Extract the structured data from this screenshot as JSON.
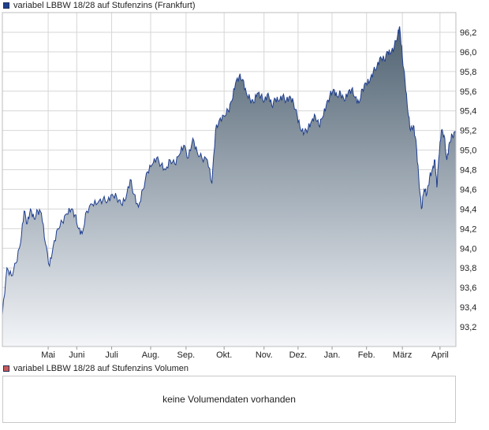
{
  "price_legend": {
    "label": "variabel LBBW 18/28 auf Stufenzins (Frankfurt)",
    "color": "#1f3f8f"
  },
  "volume_legend": {
    "label": "variabel LBBW 18/28 auf Stufenzins Volumen",
    "color": "#c85a5a"
  },
  "volume_panel": {
    "message": "keine Volumendaten vorhanden"
  },
  "chart_data": {
    "type": "area",
    "xlabel": "",
    "ylabel": "",
    "ylim": [
      93.0,
      96.4
    ],
    "grid": true,
    "y_ticks": [
      "93,2",
      "93,4",
      "93,6",
      "93,8",
      "94,0",
      "94,2",
      "94,4",
      "94,6",
      "94,8",
      "95,0",
      "95,2",
      "95,4",
      "95,6",
      "95,8",
      "96,0",
      "96,2"
    ],
    "x_ticks": [
      {
        "label": "Mai",
        "t": 0.101
      },
      {
        "label": "Juni",
        "t": 0.164
      },
      {
        "label": "Juli",
        "t": 0.241
      },
      {
        "label": "Aug.",
        "t": 0.327
      },
      {
        "label": "Sep.",
        "t": 0.405
      },
      {
        "label": "Okt.",
        "t": 0.489
      },
      {
        "label": "Nov.",
        "t": 0.577
      },
      {
        "label": "Dez.",
        "t": 0.652
      },
      {
        "label": "Jan.",
        "t": 0.727
      },
      {
        "label": "Feb.",
        "t": 0.803
      },
      {
        "label": "März",
        "t": 0.882
      },
      {
        "label": "April",
        "t": 0.965
      }
    ],
    "series": [
      {
        "values": [
          [
            0.0,
            93.32
          ],
          [
            0.01,
            93.8
          ],
          [
            0.02,
            93.72
          ],
          [
            0.03,
            93.85
          ],
          [
            0.04,
            94.05
          ],
          [
            0.048,
            94.38
          ],
          [
            0.055,
            94.25
          ],
          [
            0.062,
            94.4
          ],
          [
            0.07,
            94.3
          ],
          [
            0.078,
            94.38
          ],
          [
            0.086,
            94.36
          ],
          [
            0.095,
            94.05
          ],
          [
            0.104,
            93.82
          ],
          [
            0.112,
            94.02
          ],
          [
            0.122,
            94.2
          ],
          [
            0.132,
            94.27
          ],
          [
            0.142,
            94.35
          ],
          [
            0.152,
            94.4
          ],
          [
            0.16,
            94.34
          ],
          [
            0.168,
            94.2
          ],
          [
            0.176,
            94.15
          ],
          [
            0.186,
            94.38
          ],
          [
            0.198,
            94.45
          ],
          [
            0.21,
            94.46
          ],
          [
            0.222,
            94.5
          ],
          [
            0.232,
            94.48
          ],
          [
            0.242,
            94.55
          ],
          [
            0.252,
            94.52
          ],
          [
            0.262,
            94.45
          ],
          [
            0.272,
            94.5
          ],
          [
            0.282,
            94.7
          ],
          [
            0.29,
            94.55
          ],
          [
            0.3,
            94.42
          ],
          [
            0.31,
            94.6
          ],
          [
            0.32,
            94.78
          ],
          [
            0.33,
            94.85
          ],
          [
            0.34,
            94.92
          ],
          [
            0.35,
            94.85
          ],
          [
            0.36,
            94.8
          ],
          [
            0.37,
            94.9
          ],
          [
            0.38,
            94.86
          ],
          [
            0.39,
            94.95
          ],
          [
            0.4,
            95.05
          ],
          [
            0.41,
            94.92
          ],
          [
            0.42,
            95.12
          ],
          [
            0.43,
            94.97
          ],
          [
            0.44,
            94.92
          ],
          [
            0.452,
            94.9
          ],
          [
            0.462,
            94.66
          ],
          [
            0.47,
            95.2
          ],
          [
            0.478,
            95.3
          ],
          [
            0.488,
            95.35
          ],
          [
            0.498,
            95.4
          ],
          [
            0.506,
            95.5
          ],
          [
            0.514,
            95.68
          ],
          [
            0.522,
            95.75
          ],
          [
            0.53,
            95.72
          ],
          [
            0.538,
            95.58
          ],
          [
            0.546,
            95.52
          ],
          [
            0.554,
            95.48
          ],
          [
            0.562,
            95.58
          ],
          [
            0.57,
            95.55
          ],
          [
            0.578,
            95.5
          ],
          [
            0.586,
            95.58
          ],
          [
            0.594,
            95.45
          ],
          [
            0.602,
            95.52
          ],
          [
            0.61,
            95.5
          ],
          [
            0.618,
            95.55
          ],
          [
            0.626,
            95.5
          ],
          [
            0.634,
            95.55
          ],
          [
            0.642,
            95.48
          ],
          [
            0.65,
            95.35
          ],
          [
            0.658,
            95.2
          ],
          [
            0.666,
            95.18
          ],
          [
            0.674,
            95.22
          ],
          [
            0.682,
            95.3
          ],
          [
            0.69,
            95.35
          ],
          [
            0.698,
            95.25
          ],
          [
            0.706,
            95.33
          ],
          [
            0.714,
            95.45
          ],
          [
            0.722,
            95.55
          ],
          [
            0.73,
            95.62
          ],
          [
            0.738,
            95.55
          ],
          [
            0.746,
            95.58
          ],
          [
            0.754,
            95.5
          ],
          [
            0.762,
            95.58
          ],
          [
            0.77,
            95.62
          ],
          [
            0.778,
            95.54
          ],
          [
            0.786,
            95.48
          ],
          [
            0.794,
            95.62
          ],
          [
            0.802,
            95.68
          ],
          [
            0.81,
            95.7
          ],
          [
            0.818,
            95.8
          ],
          [
            0.826,
            95.85
          ],
          [
            0.834,
            95.95
          ],
          [
            0.842,
            95.92
          ],
          [
            0.85,
            96.0
          ],
          [
            0.856,
            95.98
          ],
          [
            0.864,
            96.05
          ],
          [
            0.872,
            96.18
          ],
          [
            0.876,
            96.26
          ],
          [
            0.882,
            95.95
          ],
          [
            0.888,
            95.7
          ],
          [
            0.894,
            95.4
          ],
          [
            0.9,
            95.2
          ],
          [
            0.906,
            95.25
          ],
          [
            0.912,
            95.1
          ],
          [
            0.918,
            94.72
          ],
          [
            0.924,
            94.4
          ],
          [
            0.93,
            94.6
          ],
          [
            0.936,
            94.55
          ],
          [
            0.942,
            94.72
          ],
          [
            0.948,
            94.8
          ],
          [
            0.954,
            94.9
          ],
          [
            0.958,
            94.62
          ],
          [
            0.962,
            94.9
          ],
          [
            0.968,
            95.2
          ],
          [
            0.974,
            95.15
          ],
          [
            0.98,
            94.9
          ],
          [
            0.986,
            95.08
          ],
          [
            0.992,
            95.15
          ],
          [
            1.0,
            95.18
          ]
        ]
      }
    ]
  }
}
